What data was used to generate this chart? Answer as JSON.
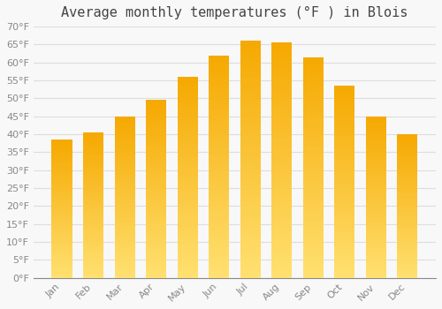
{
  "title": "Average monthly temperatures (°F ) in Blois",
  "months": [
    "Jan",
    "Feb",
    "Mar",
    "Apr",
    "May",
    "Jun",
    "Jul",
    "Aug",
    "Sep",
    "Oct",
    "Nov",
    "Dec"
  ],
  "values": [
    38.5,
    40.5,
    45.0,
    49.5,
    56.0,
    62.0,
    66.0,
    65.5,
    61.5,
    53.5,
    45.0,
    40.0
  ],
  "bar_color_top": "#F5A800",
  "bar_color_bottom": "#FFE070",
  "ylim": [
    0,
    70
  ],
  "yticks": [
    0,
    5,
    10,
    15,
    20,
    25,
    30,
    35,
    40,
    45,
    50,
    55,
    60,
    65,
    70
  ],
  "background_color": "#F8F8F8",
  "grid_color": "#DDDDDD",
  "title_fontsize": 11,
  "tick_fontsize": 8,
  "bar_width": 0.65,
  "n_gradient_steps": 100
}
